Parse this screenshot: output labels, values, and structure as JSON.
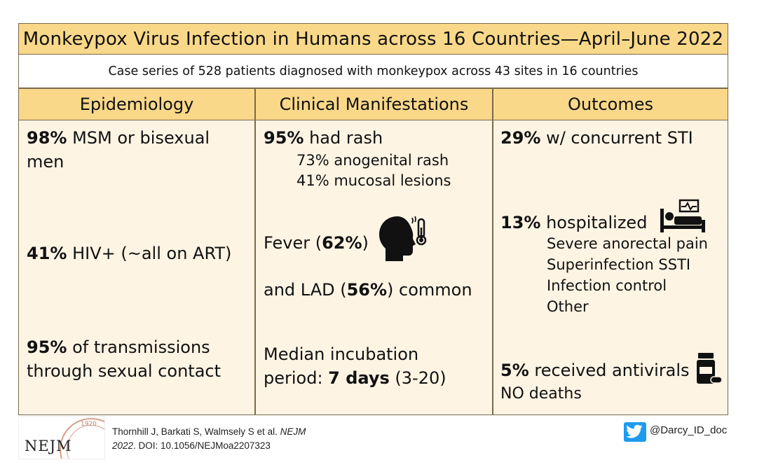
{
  "title": "Monkeypox Virus Infection in Humans across 16 Countries—April–June 2022",
  "subtitle": "Case series of 528 patients diagnosed with monkeypox across 43 sites in 16 countries",
  "columns": {
    "epidemiology": {
      "header": "Epidemiology",
      "item1_pct": "98%",
      "item1_text": " MSM or bisexual",
      "item1_text2": "men",
      "item2_pct": "41%",
      "item2_text": " HIV+ (~all on ART)",
      "item3_pct": "95%",
      "item3_text": " of transmissions",
      "item3_text2": "through sexual contact"
    },
    "clinical": {
      "header": "Clinical Manifestations",
      "rash_pct": "95%",
      "rash_text": " had rash",
      "rash_sub1": "73% anogenital rash",
      "rash_sub2": "41% mucosal lesions",
      "fever_pre": "Fever (",
      "fever_pct": "62%",
      "fever_post": ")",
      "lad_pre": "and LAD (",
      "lad_pct": "56%",
      "lad_post": ") common",
      "incubation_line1": "Median incubation",
      "incubation_pre": "period: ",
      "incubation_val": "7 days",
      "incubation_range": " (3-20)"
    },
    "outcomes": {
      "header": "Outcomes",
      "sti_pct": "29%",
      "sti_text": " w/ concurrent STI",
      "hosp_pct": "13%",
      "hosp_text": " hospitalized",
      "hosp_reasons": [
        "Severe anorectal pain",
        "Superinfection SSTI",
        "Infection control",
        "Other"
      ],
      "antiviral_pct": "5%",
      "antiviral_text": " received antivirals",
      "deaths_text": "NO deaths"
    }
  },
  "footer": {
    "citation_line1_pre": "Thornhill J, Barkati S, Walmsely S et al. ",
    "citation_journal": "NEJM",
    "citation_line2_year": "2022",
    "citation_line2_rest": ". DOI: 10.1056/NEJMoa2207323",
    "logo_text": "NEJM",
    "logo_year": "1920",
    "twitter_handle": "@Darcy_ID_doc"
  },
  "colors": {
    "header_bg": "#f9d88a",
    "body_bg": "#fef4e4",
    "twitter": "#1d9bf0"
  },
  "icons": [
    "fever-head-thermometer-icon",
    "hospital-bed-icon",
    "pill-bottle-icon",
    "twitter-icon"
  ]
}
